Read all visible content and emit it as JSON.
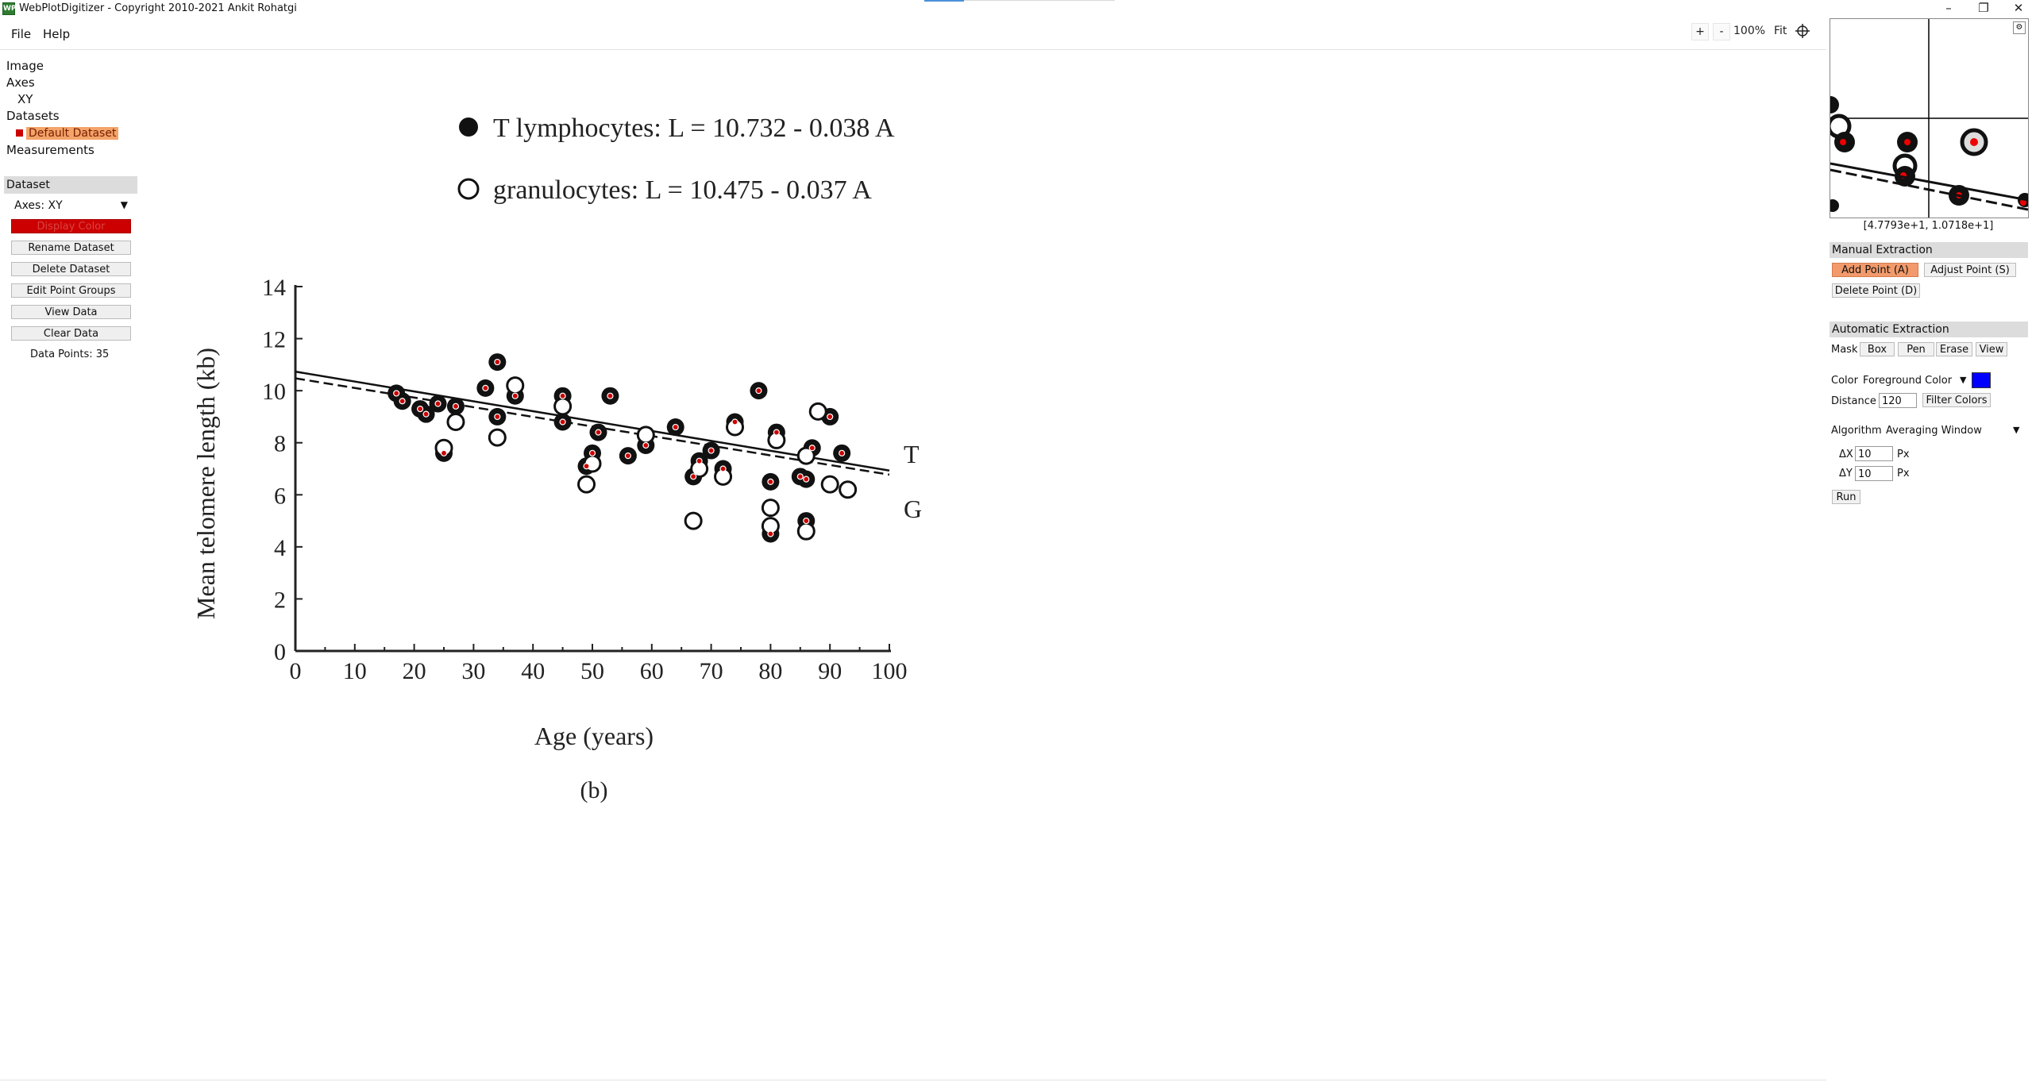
{
  "window": {
    "title": "WebPlotDigitizer - Copyright 2010-2021 Ankit Rohatgi",
    "app_icon": "WPD",
    "minimize_icon": "–",
    "maximize_icon": "❐",
    "close_icon": "✕"
  },
  "menu": {
    "file": "File",
    "help": "Help"
  },
  "zoom": {
    "in": "+",
    "out": "-",
    "level": "100%",
    "fit": "Fit"
  },
  "tree": {
    "image": "Image",
    "axes": "Axes",
    "xy": "XY",
    "datasets": "Datasets",
    "default_dataset": "Default Dataset",
    "measurements": "Measurements"
  },
  "dataset_panel": {
    "header": "Dataset",
    "axes_select": "Axes:  XY",
    "display_color": "Display Color",
    "rename": "Rename Dataset",
    "delete": "Delete Dataset",
    "edit_groups": "Edit Point Groups",
    "view_data": "View Data",
    "clear_data": "Clear Data",
    "data_points": "Data Points: 35",
    "display_color_hex": "#cc0000"
  },
  "right_panel": {
    "coords": "[4.7793e+1, 1.0718e+1]",
    "manual_header": "Manual Extraction",
    "add_point": "Add Point (A)",
    "adjust_point": "Adjust Point (S)",
    "delete_point": "Delete Point (D)",
    "auto_header": "Automatic Extraction",
    "mask_label": "Mask",
    "mask_box": "Box",
    "mask_pen": "Pen",
    "mask_erase": "Erase",
    "mask_view": "View",
    "color_label": "Color",
    "fg_color": "Foreground Color",
    "fg_color_hex": "#0000ff",
    "distance_label": "Distance",
    "distance_value": "120",
    "filter_colors": "Filter Colors",
    "algorithm_label": "Algorithm",
    "algorithm_value": "Averaging Window",
    "dx_label": "ΔX",
    "dx_value": "10",
    "dy_label": "ΔY",
    "dy_value": "10",
    "px_unit": "Px",
    "run": "Run"
  },
  "plot_image": {
    "legend_t": "T lymphocytes:  L = 10.732 - 0.038 A",
    "legend_g": "granulocytes:     L = 10.475 - 0.037 A",
    "ylabel": "Mean telomere length (kb)",
    "xlabel": "Age (years)",
    "panel_label": "(b)",
    "line_label_t": "T",
    "line_label_g": "G",
    "xticks": [
      "0",
      "10",
      "20",
      "30",
      "40",
      "50",
      "60",
      "70",
      "80",
      "90",
      "100"
    ],
    "yticks": [
      "0",
      "2",
      "4",
      "6",
      "8",
      "10",
      "12",
      "14"
    ]
  },
  "chart_data": {
    "type": "scatter",
    "xlabel": "Age (years)",
    "ylabel": "Mean telomere length (kb)",
    "xlim": [
      0,
      100
    ],
    "ylim": [
      0,
      14
    ],
    "series": [
      {
        "name": "T lymphocytes",
        "marker": "filled",
        "points": [
          [
            17,
            9.9
          ],
          [
            18,
            9.6
          ],
          [
            21,
            9.3
          ],
          [
            22,
            9.1
          ],
          [
            24,
            9.5
          ],
          [
            25,
            7.6
          ],
          [
            27,
            9.4
          ],
          [
            32,
            10.1
          ],
          [
            34,
            9.0
          ],
          [
            34,
            11.1
          ],
          [
            37,
            9.8
          ],
          [
            45,
            9.8
          ],
          [
            45,
            8.8
          ],
          [
            49,
            7.1
          ],
          [
            50,
            7.6
          ],
          [
            51,
            8.4
          ],
          [
            53,
            9.8
          ],
          [
            56,
            7.5
          ],
          [
            59,
            7.9
          ],
          [
            64,
            8.6
          ],
          [
            67,
            6.7
          ],
          [
            68,
            7.3
          ],
          [
            70,
            7.7
          ],
          [
            72,
            7.0
          ],
          [
            74,
            8.8
          ],
          [
            78,
            10.0
          ],
          [
            80,
            6.5
          ],
          [
            80,
            4.5
          ],
          [
            81,
            8.4
          ],
          [
            85,
            6.7
          ],
          [
            86,
            6.6
          ],
          [
            87,
            7.8
          ],
          [
            90,
            9.0
          ],
          [
            92,
            7.6
          ],
          [
            86,
            5.0
          ]
        ]
      },
      {
        "name": "granulocytes",
        "marker": "open",
        "points": [
          [
            27,
            8.8
          ],
          [
            34,
            8.2
          ],
          [
            37,
            10.2
          ],
          [
            49,
            6.4
          ],
          [
            50,
            7.2
          ],
          [
            59,
            8.3
          ],
          [
            67,
            5.0
          ],
          [
            68,
            7.0
          ],
          [
            72,
            6.7
          ],
          [
            74,
            8.6
          ],
          [
            80,
            5.5
          ],
          [
            80,
            4.8
          ],
          [
            81,
            8.1
          ],
          [
            86,
            4.6
          ],
          [
            86,
            7.5
          ],
          [
            88,
            9.2
          ],
          [
            90,
            6.4
          ],
          [
            93,
            6.2
          ],
          [
            45,
            9.4
          ],
          [
            25,
            7.8
          ]
        ]
      }
    ],
    "lines": [
      {
        "name": "T",
        "intercept": 10.732,
        "slope": -0.038,
        "style": "solid"
      },
      {
        "name": "G",
        "intercept": 10.475,
        "slope": -0.037,
        "style": "dashed"
      }
    ],
    "digitized_points": [
      [
        17,
        9.9
      ],
      [
        18,
        9.6
      ],
      [
        21,
        9.3
      ],
      [
        22,
        9.1
      ],
      [
        24,
        9.5
      ],
      [
        25,
        7.6
      ],
      [
        27,
        9.4
      ],
      [
        32,
        10.1
      ],
      [
        34,
        9.0
      ],
      [
        34,
        11.1
      ],
      [
        37,
        9.8
      ],
      [
        45,
        9.8
      ],
      [
        45,
        8.8
      ],
      [
        49,
        7.1
      ],
      [
        50,
        7.6
      ],
      [
        51,
        8.4
      ],
      [
        53,
        9.8
      ],
      [
        56,
        7.5
      ],
      [
        59,
        7.9
      ],
      [
        64,
        8.6
      ],
      [
        67,
        6.7
      ],
      [
        68,
        7.3
      ],
      [
        70,
        7.7
      ],
      [
        72,
        7.0
      ],
      [
        74,
        8.8
      ],
      [
        78,
        10.0
      ],
      [
        80,
        6.5
      ],
      [
        80,
        4.5
      ],
      [
        81,
        8.4
      ],
      [
        85,
        6.7
      ],
      [
        86,
        6.6
      ],
      [
        87,
        7.8
      ],
      [
        90,
        9.0
      ],
      [
        92,
        7.6
      ],
      [
        86,
        5.0
      ]
    ]
  }
}
